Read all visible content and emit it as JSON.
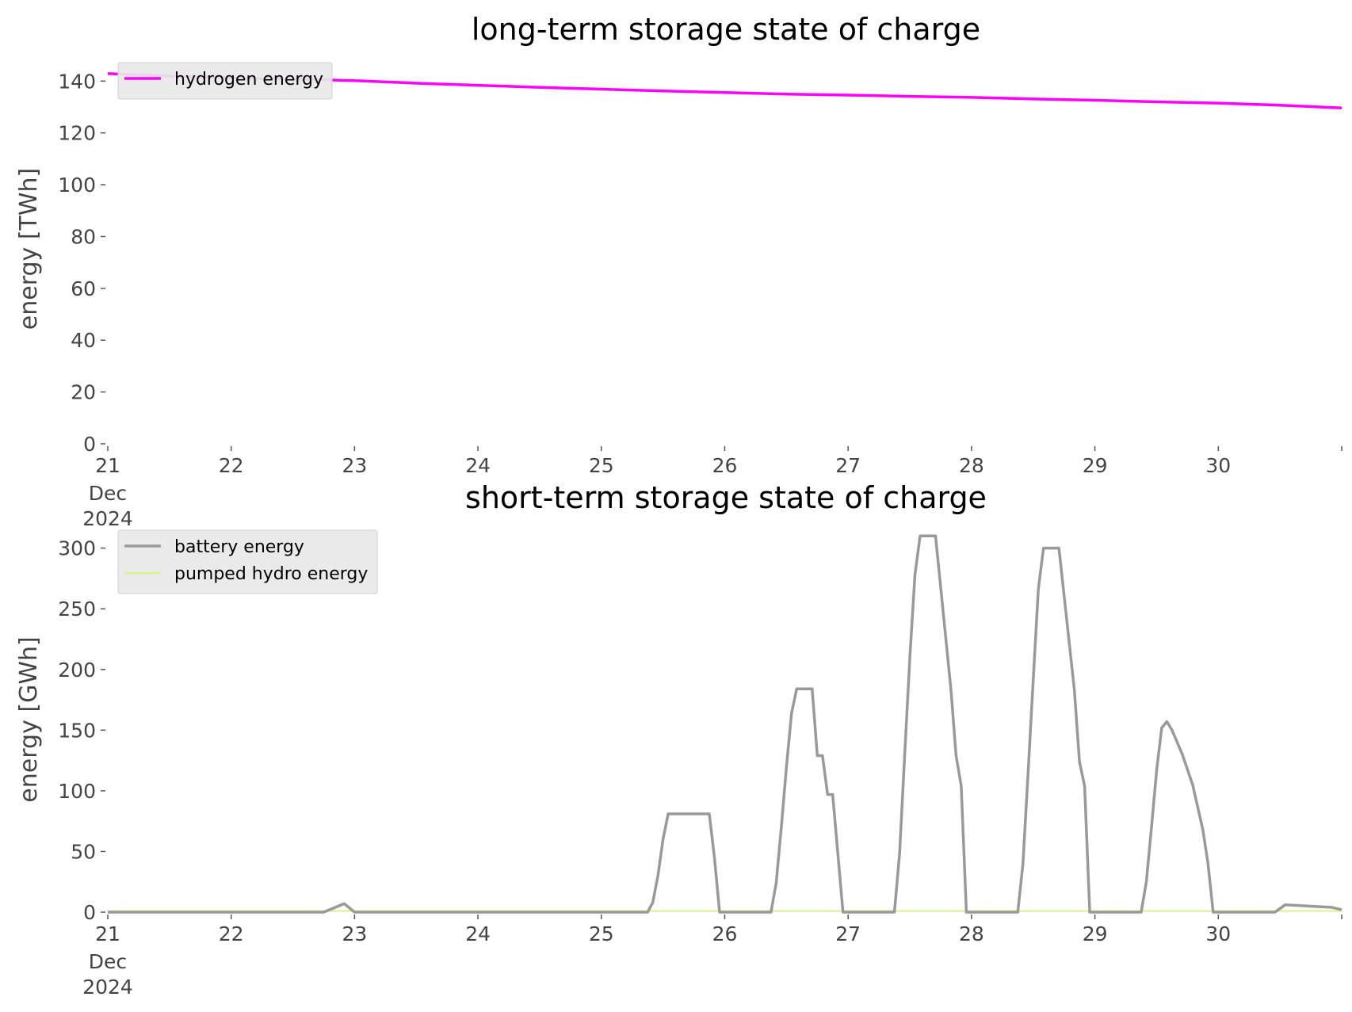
{
  "chart_data": [
    {
      "type": "line",
      "title": "long-term storage state of charge",
      "xlabel": "",
      "ylabel": "energy [TWh]",
      "x_range": [
        "2024-12-21",
        "2024-12-31"
      ],
      "ylim": [
        0,
        145
      ],
      "x_ticks": [
        "21",
        "22",
        "23",
        "24",
        "25",
        "26",
        "27",
        "28",
        "29",
        "30"
      ],
      "x_tick_sub": [
        "Dec",
        "2024"
      ],
      "y_ticks": [
        "0",
        "20",
        "40",
        "60",
        "80",
        "100",
        "120",
        "140"
      ],
      "grid": false,
      "legend_position": "top-left",
      "series": [
        {
          "name": "hydrogen energy",
          "color": "#ff00ff",
          "points": [
            [
              "2024-12-21T00:00",
              142.9
            ],
            [
              "2024-12-21T12:00",
              142.0
            ],
            [
              "2024-12-22T00:00",
              141.2
            ],
            [
              "2024-12-22T12:00",
              140.8
            ],
            [
              "2024-12-23T00:00",
              140.2
            ],
            [
              "2024-12-23T12:00",
              139.2
            ],
            [
              "2024-12-24T00:00",
              138.4
            ],
            [
              "2024-12-24T12:00",
              137.6
            ],
            [
              "2024-12-25T00:00",
              136.9
            ],
            [
              "2024-12-25T12:00",
              136.2
            ],
            [
              "2024-12-26T00:00",
              135.6
            ],
            [
              "2024-12-26T12:00",
              135.0
            ],
            [
              "2024-12-27T00:00",
              134.6
            ],
            [
              "2024-12-27T12:00",
              134.1
            ],
            [
              "2024-12-28T00:00",
              133.7
            ],
            [
              "2024-12-28T12:00",
              133.1
            ],
            [
              "2024-12-29T00:00",
              132.6
            ],
            [
              "2024-12-29T12:00",
              132.0
            ],
            [
              "2024-12-30T00:00",
              131.5
            ],
            [
              "2024-12-30T12:00",
              130.7
            ],
            [
              "2024-12-31T00:00",
              129.6
            ]
          ]
        }
      ]
    },
    {
      "type": "line",
      "title": "short-term storage state of charge",
      "xlabel": "",
      "ylabel": "energy [GWh]",
      "x_range": [
        "2024-12-21",
        "2024-12-31"
      ],
      "ylim": [
        0,
        320
      ],
      "x_ticks": [
        "21",
        "22",
        "23",
        "24",
        "25",
        "26",
        "27",
        "28",
        "29",
        "30"
      ],
      "x_tick_sub": [
        "Dec",
        "2024"
      ],
      "y_ticks": [
        "0",
        "50",
        "100",
        "150",
        "200",
        "250",
        "300"
      ],
      "grid": false,
      "legend_position": "top-left",
      "series": [
        {
          "name": "battery energy",
          "color": "#999999",
          "points": [
            [
              "2024-12-21T00:00",
              0
            ],
            [
              "2024-12-22T18:00",
              0
            ],
            [
              "2024-12-22T22:00",
              7
            ],
            [
              "2024-12-23T00:00",
              0
            ],
            [
              "2024-12-25T09:00",
              0
            ],
            [
              "2024-12-25T10:00",
              8
            ],
            [
              "2024-12-25T11:00",
              30
            ],
            [
              "2024-12-25T12:00",
              60
            ],
            [
              "2024-12-25T13:00",
              81
            ],
            [
              "2024-12-25T21:00",
              81
            ],
            [
              "2024-12-25T22:00",
              45
            ],
            [
              "2024-12-25T23:00",
              0
            ],
            [
              "2024-12-26T09:00",
              0
            ],
            [
              "2024-12-26T10:00",
              24
            ],
            [
              "2024-12-26T11:00",
              70
            ],
            [
              "2024-12-26T12:00",
              120
            ],
            [
              "2024-12-26T13:00",
              164
            ],
            [
              "2024-12-26T14:00",
              184
            ],
            [
              "2024-12-26T17:00",
              184
            ],
            [
              "2024-12-26T18:00",
              129
            ],
            [
              "2024-12-26T19:00",
              129
            ],
            [
              "2024-12-26T20:00",
              97
            ],
            [
              "2024-12-26T21:00",
              97
            ],
            [
              "2024-12-26T23:00",
              0
            ],
            [
              "2024-12-27T09:00",
              0
            ],
            [
              "2024-12-27T10:00",
              48
            ],
            [
              "2024-12-27T11:00",
              130
            ],
            [
              "2024-12-27T12:00",
              210
            ],
            [
              "2024-12-27T13:00",
              278
            ],
            [
              "2024-12-27T14:00",
              310
            ],
            [
              "2024-12-27T17:00",
              310
            ],
            [
              "2024-12-27T20:00",
              183
            ],
            [
              "2024-12-27T21:00",
              129
            ],
            [
              "2024-12-27T22:00",
              104
            ],
            [
              "2024-12-27T23:00",
              0
            ],
            [
              "2024-12-28T09:00",
              0
            ],
            [
              "2024-12-28T10:00",
              40
            ],
            [
              "2024-12-28T11:00",
              115
            ],
            [
              "2024-12-28T12:00",
              192
            ],
            [
              "2024-12-28T13:00",
              266
            ],
            [
              "2024-12-28T14:00",
              300
            ],
            [
              "2024-12-28T17:00",
              300
            ],
            [
              "2024-12-28T20:00",
              183
            ],
            [
              "2024-12-28T21:00",
              124
            ],
            [
              "2024-12-28T22:00",
              104
            ],
            [
              "2024-12-28T23:00",
              0
            ],
            [
              "2024-12-29T09:00",
              0
            ],
            [
              "2024-12-29T10:00",
              25
            ],
            [
              "2024-12-29T11:00",
              70
            ],
            [
              "2024-12-29T12:00",
              117
            ],
            [
              "2024-12-29T13:00",
              152
            ],
            [
              "2024-12-29T14:00",
              157
            ],
            [
              "2024-12-29T15:00",
              150
            ],
            [
              "2024-12-29T17:00",
              130
            ],
            [
              "2024-12-29T19:00",
              105
            ],
            [
              "2024-12-29T21:00",
              68
            ],
            [
              "2024-12-29T22:00",
              40
            ],
            [
              "2024-12-29T23:00",
              0
            ],
            [
              "2024-12-30T11:00",
              0
            ],
            [
              "2024-12-30T12:00",
              3
            ],
            [
              "2024-12-30T13:00",
              6
            ],
            [
              "2024-12-30T22:00",
              4
            ],
            [
              "2024-12-31T00:00",
              2
            ]
          ]
        },
        {
          "name": "pumped hydro energy",
          "color": "#d3f58a",
          "points": [
            [
              "2024-12-21T00:00",
              1
            ],
            [
              "2024-12-31T00:00",
              1
            ]
          ]
        }
      ]
    }
  ]
}
